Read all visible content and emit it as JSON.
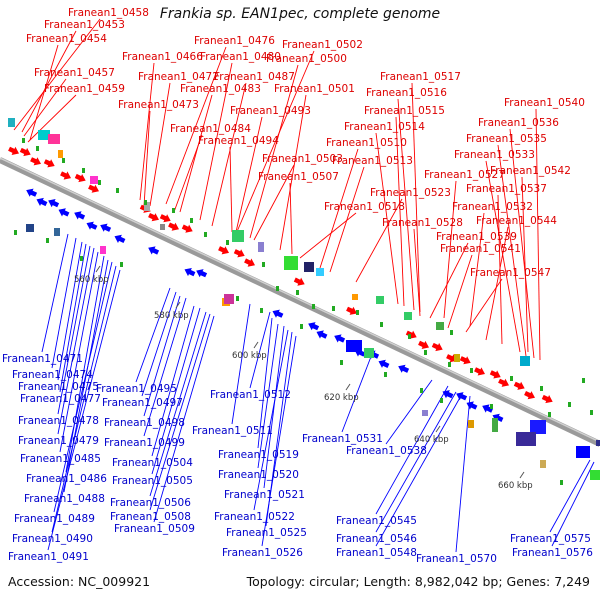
{
  "title": "Frankia sp. EAN1pec, complete genome",
  "footer": {
    "accession": "Accession: NC_009921",
    "topology": "Topology: circular; Length: 8,982,042 bp; Genes: 7,249"
  },
  "colors": {
    "forward": "#ff0000",
    "reverse": "#0000ff",
    "backbone": "#888888"
  },
  "ticks": [
    "560 kbp",
    "580 kbp",
    "600 kbp",
    "620 kbp",
    "640 kbp",
    "660 kbp"
  ],
  "top_labels": [
    "Franean1_0458",
    "Franean1_0453",
    "Franean1_0454",
    "Franean1_0476",
    "Franean1_0502",
    "Franean1_0466",
    "Franean1_0480",
    "Franean1_0500",
    "Franean1_0457",
    "Franean1_0472",
    "Franean1_0487",
    "Franean1_0517",
    "Franean1_0459",
    "Franean1_0483",
    "Franean1_0501",
    "Franean1_0516",
    "Franean1_0540",
    "Franean1_0473",
    "Franean1_0493",
    "Franean1_0515",
    "Franean1_0536",
    "Franean1_0484",
    "Franean1_0514",
    "Franean1_0535",
    "Franean1_0494",
    "Franean1_0510",
    "Franean1_0533",
    "Franean1_0503",
    "Franean1_0513",
    "Franean1_0542",
    "Franean1_0507",
    "Franean1_0527",
    "Franean1_0537",
    "Franean1_0523",
    "Franean1_0518",
    "Franean1_0532",
    "Franean1_0528",
    "Franean1_0544",
    "Franean1_0539",
    "Franean1_0541",
    "Franean1_0547"
  ],
  "bottom_labels": [
    "Franean1_0471",
    "Franean1_0474",
    "Franean1_0475",
    "Franean1_0495",
    "Franean1_0477",
    "Franean1_0497",
    "Franean1_0512",
    "Franean1_0478",
    "Franean1_0498",
    "Franean1_0511",
    "Franean1_0479",
    "Franean1_0499",
    "Franean1_0531",
    "Franean1_0485",
    "Franean1_0519",
    "Franean1_0538",
    "Franean1_0504",
    "Franean1_0486",
    "Franean1_0505",
    "Franean1_0520",
    "Franean1_0488",
    "Franean1_0506",
    "Franean1_0521",
    "Franean1_0489",
    "Franean1_0508",
    "Franean1_0522",
    "Franean1_0545",
    "Franean1_0509",
    "Franean1_0490",
    "Franean1_0525",
    "Franean1_0575",
    "Franean1_0546",
    "Franean1_0491",
    "Franean1_0526",
    "Franean1_0548",
    "Franean1_0570",
    "Franean1_0576"
  ]
}
